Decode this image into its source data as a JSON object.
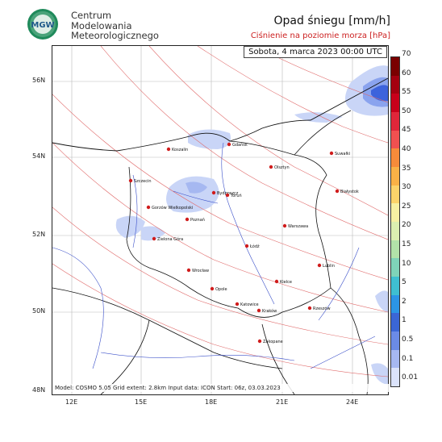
{
  "header": {
    "org_line1": "Centrum",
    "org_line2": "Modelowania",
    "org_line3": "Meteorologicznego",
    "logo_text": "MGW",
    "title": "Opad śniegu [mm/h]",
    "subtitle": "Ciśnienie na poziomie morza [hPa]",
    "date": "Sobota, 4 marca 2023 00:00 UTC"
  },
  "footer": "Model: COSMO 5.05  Grid extent: 2.8km  Input data: ICON  Start: 06z, 03.03.2023",
  "axes": {
    "lat_labels": [
      "56N",
      "54N",
      "52N",
      "50N",
      "48N"
    ],
    "lon_labels": [
      "12E",
      "15E",
      "18E",
      "21E",
      "24E"
    ]
  },
  "colorbar": {
    "ticks": [
      "70",
      "60",
      "55",
      "50",
      "45",
      "40",
      "35",
      "30",
      "25",
      "20",
      "15",
      "10",
      "5",
      "2",
      "1",
      "0.5",
      "0.1",
      "0.01"
    ],
    "colors": [
      "#7a0000",
      "#a40010",
      "#c8001a",
      "#e0263a",
      "#f05050",
      "#f68b3a",
      "#f9b146",
      "#fbd36a",
      "#f6f0a2",
      "#dcefb0",
      "#b2e2a9",
      "#7fd3b9",
      "#3fbfd1",
      "#2c95e6",
      "#3b66d6",
      "#6b8be6",
      "#a6b8f1",
      "#dbe3fb"
    ]
  },
  "cities": [
    {
      "name": "Gdańsk"
    },
    {
      "name": "Koszalin"
    },
    {
      "name": "Szczecin"
    },
    {
      "name": "Olsztyn"
    },
    {
      "name": "Suwałki"
    },
    {
      "name": "Białystok"
    },
    {
      "name": "Bydgoszcz"
    },
    {
      "name": "Toruń"
    },
    {
      "name": "Gorzów Wielkopolski"
    },
    {
      "name": "Poznań"
    },
    {
      "name": "Zielona Góra"
    },
    {
      "name": "Warszawa"
    },
    {
      "name": "Łódź"
    },
    {
      "name": "Lublin"
    },
    {
      "name": "Wrocław"
    },
    {
      "name": "Kielce"
    },
    {
      "name": "Opole"
    },
    {
      "name": "Katowice"
    },
    {
      "name": "Kraków"
    },
    {
      "name": "Rzeszów"
    },
    {
      "name": "Zakopane"
    }
  ],
  "colors": {
    "pressure_isoline": "#e06a6a",
    "rivers": "#3a4fc9",
    "borders": "#111111",
    "city_dot": "#d01c1c",
    "snow_light": "#c9d5f7",
    "snow_medium": "#8aa3ee",
    "snow_heavy": "#3d63dc"
  }
}
